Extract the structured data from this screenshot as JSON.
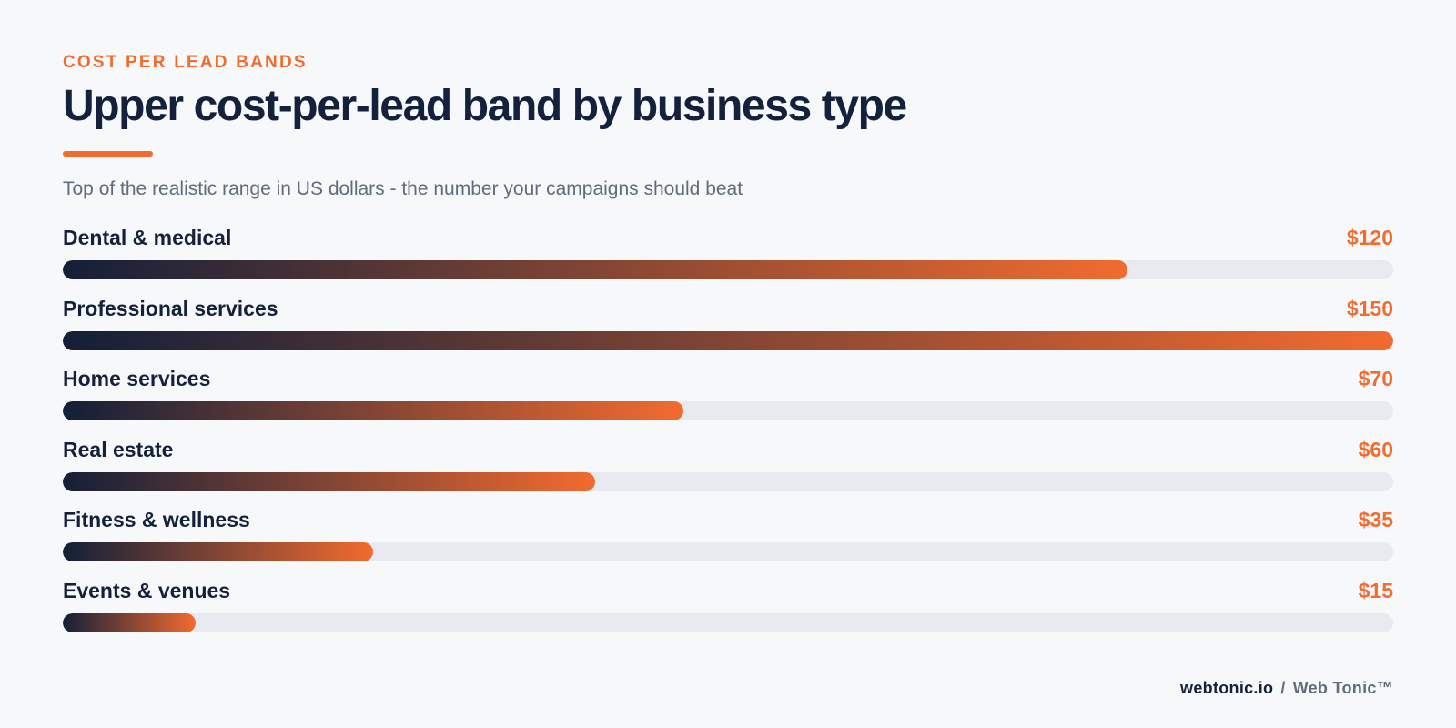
{
  "header": {
    "eyebrow": "COST PER LEAD BANDS",
    "title": "Upper cost-per-lead band by business type",
    "subtitle": "Top of the realistic range in US dollars - the number your campaigns should beat"
  },
  "chart_data": {
    "type": "bar",
    "orientation": "horizontal",
    "title": "Upper cost-per-lead band by business type",
    "subtitle": "Top of the realistic range in US dollars - the number your campaigns should beat",
    "categories": [
      "Dental & medical",
      "Professional services",
      "Home services",
      "Real estate",
      "Fitness & wellness",
      "Events & venues"
    ],
    "values": [
      120,
      150,
      70,
      60,
      35,
      15
    ],
    "value_labels": [
      "$120",
      "$150",
      "$70",
      "$60",
      "$35",
      "$15"
    ],
    "unit": "USD",
    "xlim": [
      0,
      150
    ],
    "grid": false,
    "legend": "none"
  },
  "colors": {
    "accent": "#f26b2f",
    "navy": "#14213d",
    "track": "#e8eaef",
    "background": "#f7f8fa"
  },
  "footer": {
    "domain": "webtonic.io",
    "separator": "/",
    "brand": "Web Tonic™"
  }
}
